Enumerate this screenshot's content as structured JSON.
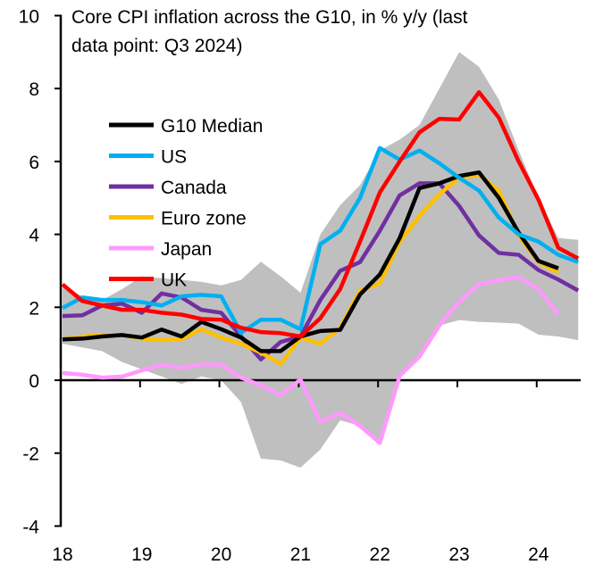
{
  "chart_data": {
    "type": "line",
    "title_lines": [
      "Core CPI inflation across the G10, in % y/y (last",
      "data point: Q3 2024)"
    ],
    "xlabel": "",
    "ylabel": "",
    "ylim": [
      -4,
      10
    ],
    "yticks": [
      10,
      8,
      6,
      4,
      2,
      0,
      -2,
      -4
    ],
    "xticks": [
      "18",
      "19",
      "20",
      "21",
      "22",
      "23",
      "24"
    ],
    "x": [
      "2018Q1",
      "2018Q2",
      "2018Q3",
      "2018Q4",
      "2019Q1",
      "2019Q2",
      "2019Q3",
      "2019Q4",
      "2020Q1",
      "2020Q2",
      "2020Q3",
      "2020Q4",
      "2021Q1",
      "2021Q2",
      "2021Q3",
      "2021Q4",
      "2022Q1",
      "2022Q2",
      "2022Q3",
      "2022Q4",
      "2023Q1",
      "2023Q2",
      "2023Q3",
      "2023Q4",
      "2024Q1",
      "2024Q2",
      "2024Q3"
    ],
    "grid": false,
    "legend_position": "upper-left",
    "band": {
      "color": "#bfbfbf",
      "upper": [
        2.6,
        2.3,
        2.2,
        2.5,
        2.85,
        2.8,
        2.75,
        2.7,
        2.6,
        2.75,
        3.25,
        2.85,
        2.4,
        4.0,
        4.8,
        5.35,
        6.3,
        6.6,
        7.0,
        8.0,
        9.0,
        8.6,
        7.7,
        6.3,
        5.0,
        3.9,
        3.85
      ],
      "lower": [
        1.0,
        0.9,
        0.8,
        0.5,
        0.3,
        0.1,
        -0.1,
        0.1,
        0.0,
        -0.6,
        -2.15,
        -2.2,
        -2.4,
        -1.9,
        -1.1,
        -1.25,
        -1.72,
        0.12,
        0.65,
        1.5,
        1.65,
        1.6,
        1.58,
        1.55,
        1.25,
        1.2,
        1.1
      ]
    },
    "series": [
      {
        "name": "G10 Median",
        "color": "#000000",
        "values": [
          1.12,
          1.14,
          1.2,
          1.24,
          1.17,
          1.39,
          1.2,
          1.6,
          1.4,
          1.17,
          0.8,
          0.8,
          1.2,
          1.35,
          1.38,
          2.35,
          2.9,
          3.9,
          5.27,
          5.4,
          5.6,
          5.7,
          5.0,
          4.05,
          3.27,
          3.07,
          null
        ]
      },
      {
        "name": "US",
        "color": "#00b0f0",
        "values": [
          1.98,
          2.27,
          2.2,
          2.2,
          2.14,
          2.05,
          2.3,
          2.34,
          2.3,
          1.3,
          1.66,
          1.66,
          1.4,
          3.73,
          4.1,
          5.0,
          6.37,
          6.05,
          6.3,
          5.95,
          5.55,
          5.2,
          4.46,
          4.0,
          3.8,
          3.44,
          3.24
        ]
      },
      {
        "name": "Canada",
        "color": "#7030a0",
        "values": [
          1.76,
          1.78,
          2.05,
          2.1,
          1.85,
          2.38,
          2.27,
          1.93,
          1.85,
          1.2,
          0.57,
          1.05,
          1.2,
          2.2,
          3.0,
          3.24,
          4.1,
          5.07,
          5.4,
          5.4,
          4.78,
          3.97,
          3.49,
          3.44,
          3.02,
          2.76,
          2.46
        ]
      },
      {
        "name": "Euro zone",
        "color": "#ffc000",
        "values": [
          1.12,
          1.2,
          1.24,
          1.24,
          1.14,
          1.1,
          1.12,
          1.4,
          1.17,
          1.0,
          0.76,
          0.44,
          1.17,
          1.0,
          1.44,
          2.46,
          2.66,
          3.8,
          4.5,
          5.1,
          5.55,
          5.63,
          5.2,
          3.97,
          3.24,
          2.95,
          null
        ]
      },
      {
        "name": "Japan",
        "color": "#ff99ff",
        "values": [
          0.2,
          0.15,
          0.07,
          0.1,
          0.27,
          0.43,
          0.34,
          0.43,
          0.43,
          0.07,
          -0.14,
          -0.41,
          0.02,
          -1.15,
          -0.9,
          -1.25,
          -1.72,
          0.12,
          0.65,
          1.5,
          2.15,
          2.63,
          2.75,
          2.83,
          2.5,
          1.8,
          null
        ]
      },
      {
        "name": "UK",
        "color": "#ff0000",
        "values": [
          2.63,
          2.17,
          2.05,
          1.93,
          1.93,
          1.85,
          1.8,
          1.68,
          1.66,
          1.44,
          1.32,
          1.29,
          1.2,
          1.7,
          2.5,
          3.8,
          5.15,
          6.0,
          6.8,
          7.17,
          7.15,
          7.9,
          7.2,
          6.0,
          4.95,
          3.63,
          3.34
        ]
      }
    ]
  }
}
